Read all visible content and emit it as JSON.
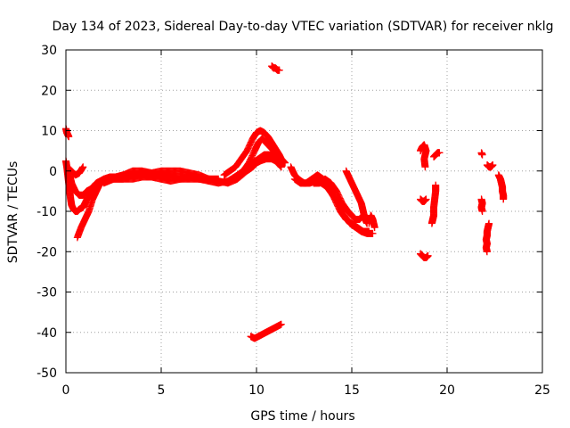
{
  "chart_data": {
    "type": "scatter",
    "title": "Day 134 of 2023, Sidereal Day-to-day VTEC variation (SDTVAR) for receiver nklg",
    "xlabel": "GPS time / hours",
    "ylabel": "SDTVAR / TECUs",
    "xlim": [
      0,
      25
    ],
    "ylim": [
      -50,
      30
    ],
    "xticks": [
      0,
      5,
      10,
      15,
      20,
      25
    ],
    "yticks": [
      -50,
      -40,
      -30,
      -20,
      -10,
      0,
      10,
      20,
      30
    ],
    "grid": true,
    "marker": "+",
    "series_color": "#ff0000",
    "series": [
      {
        "name": "arc-start-high",
        "points": [
          [
            0.0,
            10.5
          ],
          [
            0.05,
            9.5
          ],
          [
            0.1,
            9.0
          ],
          [
            0.15,
            8.5
          ]
        ]
      },
      {
        "name": "arc-1",
        "points": [
          [
            0.0,
            2.5
          ],
          [
            0.05,
            1
          ],
          [
            0.1,
            -1
          ],
          [
            0.15,
            -3
          ],
          [
            0.2,
            -5
          ],
          [
            0.25,
            -7
          ],
          [
            0.3,
            -8.5
          ],
          [
            0.4,
            -9.5
          ],
          [
            0.5,
            -10
          ],
          [
            0.6,
            -10
          ],
          [
            0.7,
            -9.5
          ],
          [
            0.9,
            -9
          ],
          [
            1.0,
            -8
          ],
          [
            1.2,
            -6
          ],
          [
            1.4,
            -4
          ],
          [
            1.6,
            -3
          ],
          [
            1.8,
            -2.5
          ],
          [
            2.0,
            -2
          ],
          [
            2.3,
            -1.5
          ],
          [
            2.6,
            -1.5
          ],
          [
            3.0,
            -1
          ],
          [
            3.5,
            -1
          ],
          [
            4.0,
            -0.5
          ],
          [
            4.5,
            -0.5
          ],
          [
            5.0,
            0
          ],
          [
            5.5,
            0
          ],
          [
            6.0,
            0
          ],
          [
            6.5,
            -0.5
          ],
          [
            7.0,
            -1
          ],
          [
            7.5,
            -2
          ],
          [
            8.0,
            -2.5
          ]
        ]
      },
      {
        "name": "arc-2",
        "points": [
          [
            0.1,
            1
          ],
          [
            0.2,
            -1
          ],
          [
            0.3,
            -3
          ],
          [
            0.5,
            -5
          ],
          [
            0.7,
            -6
          ],
          [
            0.9,
            -6
          ],
          [
            1.1,
            -5
          ],
          [
            1.3,
            -4.5
          ],
          [
            1.5,
            -4
          ],
          [
            1.8,
            -3
          ],
          [
            2.1,
            -2.5
          ],
          [
            2.5,
            -2
          ],
          [
            3.0,
            -2
          ],
          [
            3.5,
            -2
          ],
          [
            4.0,
            -1.5
          ],
          [
            4.5,
            -1.5
          ],
          [
            5.0,
            -1
          ],
          [
            5.5,
            -1
          ],
          [
            6.0,
            -1.5
          ],
          [
            6.5,
            -1.5
          ],
          [
            7.0,
            -2
          ],
          [
            7.5,
            -2
          ],
          [
            8.0,
            -2
          ]
        ]
      },
      {
        "name": "arc-3",
        "points": [
          [
            0.3,
            0
          ],
          [
            0.5,
            -1
          ],
          [
            0.7,
            -0.5
          ],
          [
            0.9,
            1
          ]
        ]
      },
      {
        "name": "arc-4",
        "points": [
          [
            0.6,
            -16.5
          ],
          [
            0.8,
            -14
          ],
          [
            1.0,
            -12
          ],
          [
            1.2,
            -10
          ],
          [
            1.4,
            -7
          ],
          [
            1.6,
            -5
          ],
          [
            1.8,
            -3
          ],
          [
            2.0,
            -2.5
          ]
        ]
      },
      {
        "name": "arc-5",
        "points": [
          [
            1.4,
            -4
          ],
          [
            1.7,
            -3
          ],
          [
            2.0,
            -2
          ],
          [
            2.5,
            -2
          ],
          [
            3.0,
            -1
          ],
          [
            3.5,
            0
          ],
          [
            4.0,
            0
          ],
          [
            4.5,
            -0.5
          ],
          [
            5.0,
            -1
          ],
          [
            5.5,
            -1.5
          ],
          [
            6.0,
            -2
          ],
          [
            6.5,
            -2
          ],
          [
            7.0,
            -2
          ],
          [
            7.5,
            -2.5
          ],
          [
            8.0,
            -3
          ],
          [
            8.5,
            -2.5
          ],
          [
            9.0,
            -1
          ],
          [
            9.3,
            0
          ],
          [
            9.6,
            2
          ],
          [
            9.9,
            5
          ],
          [
            10.1,
            7
          ],
          [
            10.3,
            8
          ],
          [
            10.5,
            7
          ],
          [
            10.7,
            6
          ],
          [
            10.9,
            5
          ],
          [
            11.1,
            3
          ],
          [
            11.3,
            1
          ]
        ]
      },
      {
        "name": "arc-6",
        "points": [
          [
            2.0,
            -3
          ],
          [
            2.5,
            -2
          ],
          [
            3.0,
            -2
          ],
          [
            3.5,
            -1
          ],
          [
            4.0,
            -1
          ],
          [
            4.5,
            -1.5
          ],
          [
            5.0,
            -2
          ],
          [
            5.5,
            -2.5
          ],
          [
            6.0,
            -2
          ],
          [
            6.5,
            -1.5
          ],
          [
            7.0,
            -2
          ],
          [
            7.5,
            -2
          ],
          [
            8.0,
            -2.5
          ],
          [
            8.5,
            -3
          ],
          [
            9.0,
            -2
          ],
          [
            9.5,
            0
          ],
          [
            9.8,
            1
          ],
          [
            10.0,
            2
          ],
          [
            10.2,
            2.5
          ],
          [
            10.5,
            3
          ],
          [
            10.8,
            3
          ],
          [
            11.0,
            2.5
          ],
          [
            11.3,
            1
          ]
        ]
      },
      {
        "name": "arc-7",
        "points": [
          [
            8.3,
            -1
          ],
          [
            8.6,
            0
          ],
          [
            8.9,
            1
          ],
          [
            9.2,
            3
          ],
          [
            9.5,
            5
          ],
          [
            9.8,
            8
          ],
          [
            10.0,
            9.5
          ],
          [
            10.2,
            10
          ],
          [
            10.4,
            9.5
          ],
          [
            10.6,
            8.5
          ],
          [
            10.8,
            7
          ],
          [
            11.0,
            5.5
          ],
          [
            11.2,
            4
          ],
          [
            11.4,
            2
          ]
        ]
      },
      {
        "name": "arc-8",
        "points": [
          [
            9.2,
            -1
          ],
          [
            9.5,
            1
          ],
          [
            9.8,
            2
          ],
          [
            10.1,
            3
          ],
          [
            10.4,
            4
          ],
          [
            10.7,
            4
          ],
          [
            11.0,
            3.5
          ],
          [
            11.3,
            3
          ],
          [
            11.5,
            2
          ]
        ]
      },
      {
        "name": "arc-low",
        "points": [
          [
            9.7,
            -41
          ],
          [
            9.9,
            -41.5
          ],
          [
            10.1,
            -41
          ],
          [
            10.3,
            -40.5
          ],
          [
            10.5,
            -40
          ],
          [
            10.7,
            -39.5
          ],
          [
            10.9,
            -39
          ],
          [
            11.1,
            -38.5
          ],
          [
            11.3,
            -38
          ]
        ]
      },
      {
        "name": "arc-high",
        "points": [
          [
            10.8,
            26
          ],
          [
            10.9,
            25.5
          ],
          [
            11.0,
            25.5
          ],
          [
            11.1,
            25
          ],
          [
            11.2,
            25
          ]
        ]
      },
      {
        "name": "arc-9",
        "points": [
          [
            11.8,
            1
          ],
          [
            12.0,
            -1
          ],
          [
            12.2,
            -2
          ],
          [
            12.5,
            -3
          ],
          [
            12.8,
            -3
          ],
          [
            13.1,
            -2.5
          ],
          [
            13.4,
            -3
          ],
          [
            13.7,
            -4
          ],
          [
            14.0,
            -6
          ],
          [
            14.3,
            -8
          ],
          [
            14.6,
            -11
          ],
          [
            14.9,
            -13
          ],
          [
            15.2,
            -14
          ],
          [
            15.5,
            -15
          ],
          [
            15.8,
            -15.5
          ],
          [
            16.1,
            -15.5
          ]
        ]
      },
      {
        "name": "arc-10",
        "points": [
          [
            12.0,
            -2
          ],
          [
            12.3,
            -3
          ],
          [
            12.6,
            -3
          ],
          [
            12.9,
            -2
          ],
          [
            13.2,
            -1
          ],
          [
            13.5,
            -2
          ],
          [
            13.8,
            -4
          ],
          [
            14.1,
            -7
          ],
          [
            14.4,
            -10
          ],
          [
            14.7,
            -12
          ],
          [
            15.0,
            -13
          ],
          [
            15.3,
            -14
          ],
          [
            15.6,
            -15
          ],
          [
            15.9,
            -15
          ]
        ]
      },
      {
        "name": "arc-11",
        "points": [
          [
            13.0,
            -3
          ],
          [
            13.3,
            -3
          ],
          [
            13.6,
            -2
          ],
          [
            13.9,
            -3
          ],
          [
            14.2,
            -5
          ],
          [
            14.5,
            -8
          ],
          [
            14.8,
            -10
          ],
          [
            15.0,
            -11
          ],
          [
            15.2,
            -12
          ],
          [
            15.4,
            -12
          ],
          [
            15.6,
            -11
          ]
        ]
      },
      {
        "name": "arc-12",
        "points": [
          [
            14.7,
            0
          ],
          [
            14.9,
            -2
          ],
          [
            15.1,
            -4
          ],
          [
            15.3,
            -6
          ],
          [
            15.5,
            -8
          ],
          [
            15.6,
            -10
          ],
          [
            15.7,
            -12
          ],
          [
            15.8,
            -13
          ]
        ]
      },
      {
        "name": "arc-13",
        "points": [
          [
            15.9,
            -13
          ],
          [
            16.0,
            -11
          ],
          [
            16.1,
            -12
          ],
          [
            16.2,
            -14
          ]
        ]
      },
      {
        "name": "seg-19a",
        "points": [
          [
            18.6,
            5
          ],
          [
            18.7,
            6
          ],
          [
            18.8,
            6.5
          ],
          [
            18.9,
            5
          ],
          [
            18.8,
            3
          ],
          [
            18.85,
            1
          ]
        ]
      },
      {
        "name": "seg-19b",
        "points": [
          [
            18.6,
            -7
          ],
          [
            18.7,
            -7.5
          ],
          [
            18.8,
            -7.5
          ],
          [
            18.9,
            -7
          ]
        ]
      },
      {
        "name": "seg-19c",
        "points": [
          [
            18.6,
            -20.5
          ],
          [
            18.7,
            -21
          ],
          [
            18.8,
            -21.5
          ],
          [
            18.9,
            -21.5
          ],
          [
            19.0,
            -21
          ]
        ]
      },
      {
        "name": "seg-19d",
        "points": [
          [
            19.3,
            3.5
          ],
          [
            19.4,
            4
          ],
          [
            19.5,
            4.5
          ],
          [
            19.6,
            4.5
          ]
        ]
      },
      {
        "name": "seg-19e",
        "points": [
          [
            19.4,
            -3.5
          ],
          [
            19.4,
            -5
          ],
          [
            19.35,
            -7
          ],
          [
            19.3,
            -9
          ],
          [
            19.3,
            -11
          ],
          [
            19.25,
            -12
          ],
          [
            19.2,
            -13
          ]
        ]
      },
      {
        "name": "seg-22a",
        "points": [
          [
            21.8,
            4.5
          ],
          [
            21.85,
            4
          ]
        ]
      },
      {
        "name": "seg-22b",
        "points": [
          [
            21.8,
            -7
          ],
          [
            21.85,
            -8
          ],
          [
            21.8,
            -9
          ],
          [
            21.85,
            -10
          ]
        ]
      },
      {
        "name": "seg-22c",
        "points": [
          [
            22.1,
            1.5
          ],
          [
            22.2,
            1
          ],
          [
            22.3,
            1
          ],
          [
            22.4,
            1.5
          ]
        ]
      },
      {
        "name": "seg-22d",
        "points": [
          [
            22.2,
            -13
          ],
          [
            22.15,
            -14
          ],
          [
            22.1,
            -15
          ],
          [
            22.1,
            -16
          ],
          [
            22.05,
            -17
          ],
          [
            22.1,
            -18
          ],
          [
            22.05,
            -19
          ],
          [
            22.1,
            -20
          ]
        ]
      },
      {
        "name": "seg-23",
        "points": [
          [
            22.7,
            -1
          ],
          [
            22.8,
            -2
          ],
          [
            22.85,
            -3
          ],
          [
            22.9,
            -4
          ],
          [
            22.9,
            -5
          ],
          [
            22.95,
            -6
          ],
          [
            22.95,
            -7
          ]
        ]
      }
    ]
  }
}
